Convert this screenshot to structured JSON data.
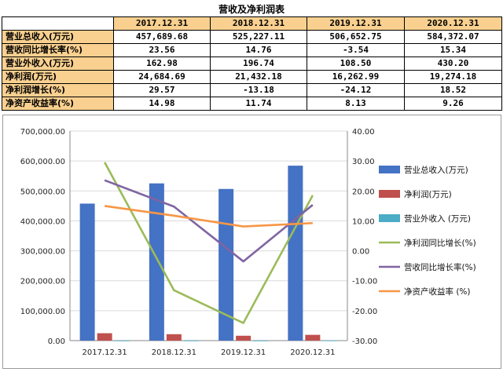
{
  "table": {
    "title": "营收及净利润表",
    "columns": [
      "2017.12.31",
      "2018.12.31",
      "2019.12.31",
      "2020.12.31"
    ],
    "rows": [
      {
        "label": "营业总收入(万元)",
        "values": [
          "457,689.68",
          "525,227.11",
          "506,652.75",
          "584,372.07"
        ]
      },
      {
        "label": "营收同比增长率(%)",
        "values": [
          "23.56",
          "14.76",
          "-3.54",
          "15.34"
        ]
      },
      {
        "label": "营业外收入(万元)",
        "values": [
          "162.98",
          "196.74",
          "108.50",
          "430.20"
        ]
      },
      {
        "label": "净利润(万元)",
        "values": [
          "24,684.69",
          "21,432.18",
          "16,262.99",
          "19,274.18"
        ]
      },
      {
        "label": "净利润增长(%)",
        "values": [
          "29.57",
          "-13.18",
          "-24.12",
          "18.52"
        ]
      },
      {
        "label": "净资产收益率(%)",
        "values": [
          "14.98",
          "11.74",
          "8.13",
          "9.26"
        ]
      }
    ]
  },
  "chart_data": {
    "type": "bar",
    "categories": [
      "2017.12.31",
      "2018.12.31",
      "2019.12.31",
      "2020.12.31"
    ],
    "left_axis": {
      "ylim": [
        0,
        700000
      ],
      "ticks": [
        "0.00",
        "100,000.00",
        "200,000.00",
        "300,000.00",
        "400,000.00",
        "500,000.00",
        "600,000.00",
        "700,000.00"
      ]
    },
    "right_axis": {
      "ylim": [
        -30,
        40
      ],
      "ticks": [
        "-30.00",
        "-20.00",
        "-10.00",
        "0.00",
        "10.00",
        "20.00",
        "30.00",
        "40.00"
      ]
    },
    "series": [
      {
        "name": "营业总收入(万元)",
        "kind": "bar",
        "axis": "left",
        "color": "#4472c4",
        "values": [
          457689.68,
          525227.11,
          506652.75,
          584372.07
        ]
      },
      {
        "name": "净利润(万元)",
        "kind": "bar",
        "axis": "left",
        "color": "#c0504d",
        "values": [
          24684.69,
          21432.18,
          16262.99,
          19274.18
        ]
      },
      {
        "name": "营业外收入 (万元)",
        "kind": "bar",
        "axis": "left",
        "color": "#4bacc6",
        "values": [
          162.98,
          196.74,
          108.5,
          430.2
        ]
      },
      {
        "name": "净利润同比增长(%)",
        "kind": "line",
        "axis": "right",
        "color": "#9bbb59",
        "values": [
          29.57,
          -13.18,
          -24.12,
          18.52
        ]
      },
      {
        "name": "营收同比增长率(%)",
        "kind": "line",
        "axis": "right",
        "color": "#8064a2",
        "values": [
          23.56,
          14.76,
          -3.54,
          15.34
        ]
      },
      {
        "name": "净资产收益率 (%)",
        "kind": "line",
        "axis": "right",
        "color": "#f79646",
        "values": [
          14.98,
          11.74,
          8.13,
          9.26
        ]
      }
    ],
    "legend_position": "right",
    "grid": true
  }
}
